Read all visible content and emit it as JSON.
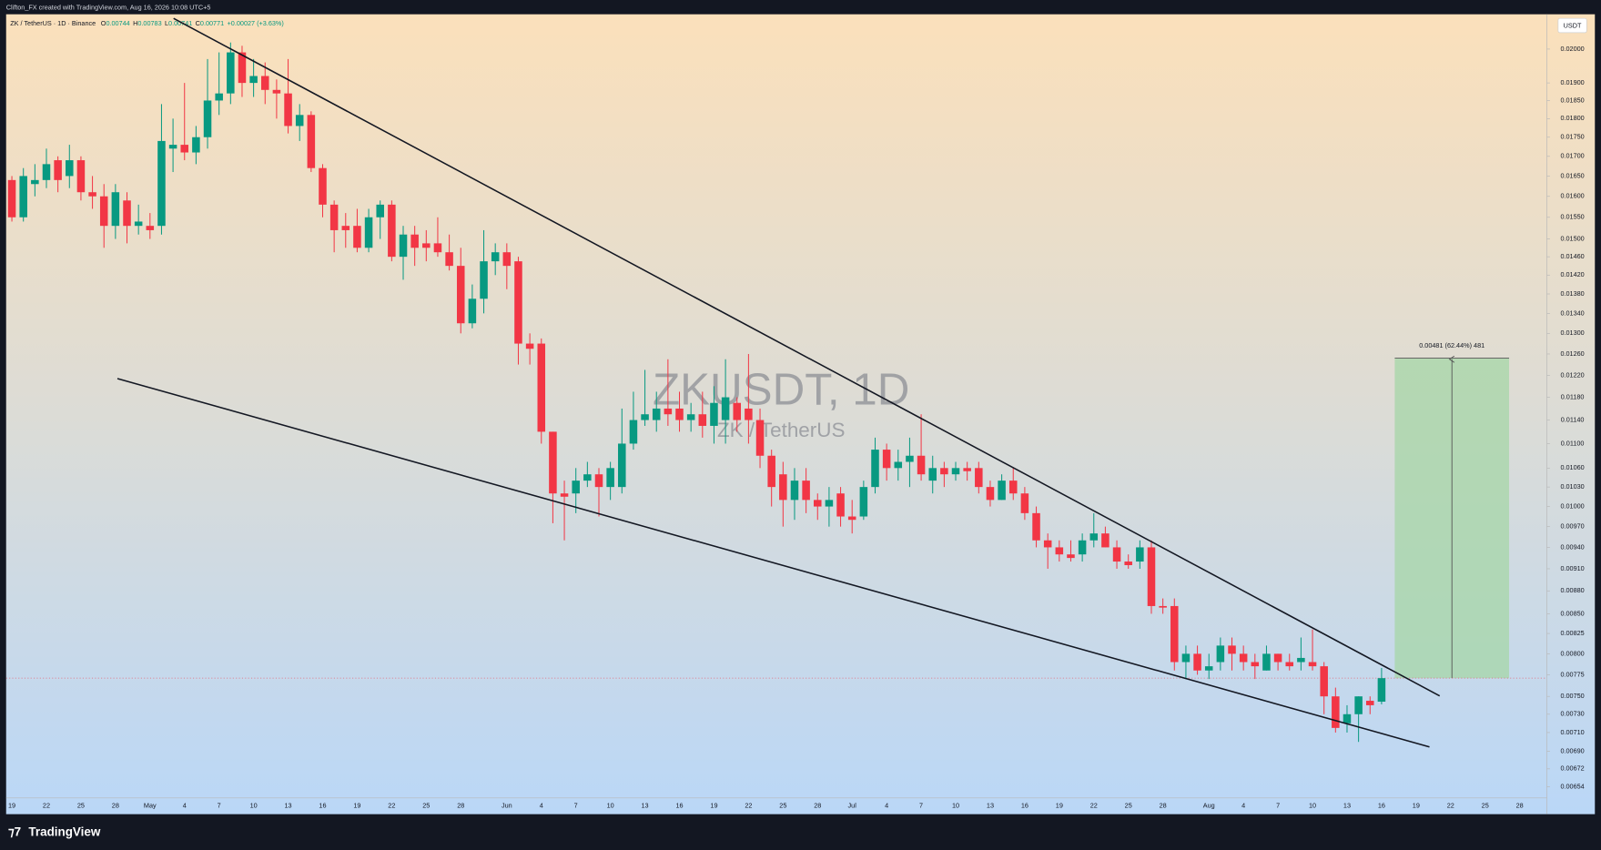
{
  "header": {
    "credit": "Clifton_FX created with TradingView.com, Aug 16, 2026 10:08 UTC+5"
  },
  "chart_data": {
    "type": "candlestick",
    "symbol": "ZK / TetherUS · 1D · Binance",
    "legend": {
      "open_label": "O",
      "open": 0.00744,
      "high_label": "H",
      "high": 0.00783,
      "low_label": "L",
      "low": 0.00741,
      "close_label": "C",
      "close": 0.00771,
      "change": "+0.00027 (+3.63%)"
    },
    "watermark_title": "ZKUSDT, 1D",
    "watermark_subtitle": "ZK / TetherUS",
    "currency": "USDT",
    "up_color": "#089981",
    "down_color": "#f23645",
    "log_scale": true,
    "grid": false,
    "ylim": [
      0.00643,
      0.02105
    ],
    "yticks": [
      {
        "value": 0.02,
        "label": "0.02000"
      },
      {
        "value": 0.019,
        "label": "0.01900"
      },
      {
        "value": 0.0185,
        "label": "0.01850"
      },
      {
        "value": 0.018,
        "label": "0.01800"
      },
      {
        "value": 0.0175,
        "label": "0.01750"
      },
      {
        "value": 0.017,
        "label": "0.01700"
      },
      {
        "value": 0.0165,
        "label": "0.01650"
      },
      {
        "value": 0.016,
        "label": "0.01600"
      },
      {
        "value": 0.0155,
        "label": "0.01550"
      },
      {
        "value": 0.015,
        "label": "0.01500"
      },
      {
        "value": 0.0146,
        "label": "0.01460"
      },
      {
        "value": 0.0142,
        "label": "0.01420"
      },
      {
        "value": 0.0138,
        "label": "0.01380"
      },
      {
        "value": 0.0134,
        "label": "0.01340"
      },
      {
        "value": 0.013,
        "label": "0.01300"
      },
      {
        "value": 0.0126,
        "label": "0.01260"
      },
      {
        "value": 0.0122,
        "label": "0.01220"
      },
      {
        "value": 0.0118,
        "label": "0.01180"
      },
      {
        "value": 0.0114,
        "label": "0.01140"
      },
      {
        "value": 0.011,
        "label": "0.01100"
      },
      {
        "value": 0.0106,
        "label": "0.01060"
      },
      {
        "value": 0.0103,
        "label": "0.01030"
      },
      {
        "value": 0.01,
        "label": "0.01000"
      },
      {
        "value": 0.0097,
        "label": "0.00970"
      },
      {
        "value": 0.0094,
        "label": "0.00940"
      },
      {
        "value": 0.0091,
        "label": "0.00910"
      },
      {
        "value": 0.0088,
        "label": "0.00880"
      },
      {
        "value": 0.0085,
        "label": "0.00850"
      },
      {
        "value": 0.00825,
        "label": "0.00825"
      },
      {
        "value": 0.008,
        "label": "0.00800"
      },
      {
        "value": 0.00775,
        "label": "0.00775"
      },
      {
        "value": 0.0075,
        "label": "0.00750"
      },
      {
        "value": 0.0073,
        "label": "0.00730"
      },
      {
        "value": 0.0071,
        "label": "0.00710"
      },
      {
        "value": 0.0069,
        "label": "0.00690"
      },
      {
        "value": 0.00672,
        "label": "0.00672"
      },
      {
        "value": 0.00654,
        "label": "0.00654"
      }
    ],
    "categories": [
      "19",
      null,
      null,
      "22",
      null,
      null,
      "25",
      null,
      null,
      "28",
      null,
      null,
      "May",
      null,
      null,
      "4",
      null,
      null,
      "7",
      null,
      null,
      "10",
      null,
      null,
      "13",
      null,
      null,
      "16",
      null,
      null,
      "19",
      null,
      null,
      "22",
      null,
      null,
      "25",
      null,
      null,
      "28",
      null,
      null,
      null,
      "Jun",
      null,
      null,
      "4",
      null,
      null,
      "7",
      null,
      null,
      "10",
      null,
      null,
      "13",
      null,
      null,
      "16",
      null,
      null,
      "19",
      null,
      null,
      "22",
      null,
      null,
      "25",
      null,
      null,
      "28",
      null,
      null,
      "Jul",
      null,
      null,
      "4",
      null,
      null,
      "7",
      null,
      null,
      "10",
      null,
      null,
      "13",
      null,
      null,
      "16",
      null,
      null,
      "19",
      null,
      null,
      "22",
      null,
      null,
      "25",
      null,
      null,
      "28",
      null,
      null,
      null,
      "Aug",
      null,
      null,
      "4",
      null,
      null,
      "7",
      null,
      null,
      "10",
      null,
      null,
      "13",
      null,
      null,
      "16",
      null,
      null,
      "19",
      null,
      null,
      "22",
      null,
      null,
      "25",
      null,
      null,
      "28"
    ],
    "open": [
      0.0164,
      0.0155,
      0.0163,
      0.0164,
      0.0169,
      0.0165,
      0.0169,
      0.0161,
      0.016,
      0.0153,
      0.0159,
      0.0153,
      0.0153,
      0.0153,
      0.0172,
      0.0173,
      0.0171,
      0.0175,
      0.0185,
      0.0187,
      0.0199,
      0.019,
      0.0192,
      0.0188,
      0.0187,
      0.0178,
      0.0181,
      0.0167,
      0.0158,
      0.0153,
      0.0153,
      0.0148,
      0.0155,
      0.0158,
      0.0146,
      0.0151,
      0.0149,
      0.0149,
      0.0147,
      0.0144,
      0.0132,
      0.0137,
      0.0145,
      0.0147,
      0.0145,
      0.0128,
      0.0128,
      0.0112,
      0.0102,
      0.0102,
      0.0104,
      0.0105,
      0.0103,
      0.0103,
      0.011,
      0.0114,
      0.0114,
      0.0116,
      0.0116,
      0.0114,
      0.0115,
      0.0113,
      0.0114,
      0.0117,
      0.0116,
      0.0114,
      0.0108,
      0.0105,
      0.0101,
      0.0104,
      0.0101,
      0.01,
      0.0102,
      0.00985,
      0.00985,
      0.0103,
      0.0109,
      0.0106,
      0.0107,
      0.0108,
      0.0104,
      0.0106,
      0.0105,
      0.0106,
      0.0106,
      0.0103,
      0.0101,
      0.0104,
      0.0102,
      0.0099,
      0.0095,
      0.0094,
      0.0093,
      0.0093,
      0.0095,
      0.0096,
      0.0094,
      0.0092,
      0.0092,
      0.0094,
      0.0086,
      0.0086,
      0.0079,
      0.008,
      0.0078,
      0.0079,
      0.0081,
      0.008,
      0.0079,
      0.0078,
      0.008,
      0.0079,
      0.0079,
      0.0079,
      0.00785,
      0.0075,
      0.0072,
      0.0073,
      0.00745,
      0.00744,
      null,
      null,
      null,
      null,
      null,
      null,
      null,
      null,
      null,
      null,
      null,
      null
    ],
    "high": [
      0.0165,
      0.0167,
      0.0168,
      0.0172,
      0.017,
      0.0173,
      0.017,
      0.0165,
      0.0163,
      0.0163,
      0.0161,
      0.0158,
      0.0156,
      0.0184,
      0.018,
      0.019,
      0.0178,
      0.0197,
      0.0199,
      0.0202,
      0.0201,
      0.0197,
      0.0196,
      0.0191,
      0.0197,
      0.0184,
      0.0182,
      0.0168,
      0.0159,
      0.0156,
      0.0157,
      0.0157,
      0.0159,
      0.0159,
      0.0153,
      0.0153,
      0.0152,
      0.0155,
      0.0151,
      0.0148,
      0.014,
      0.0152,
      0.0149,
      0.0149,
      0.0146,
      0.013,
      0.0129,
      0.0112,
      0.0104,
      0.0106,
      0.0107,
      0.0106,
      0.0107,
      0.0116,
      0.0119,
      0.0123,
      0.0119,
      0.0125,
      0.0119,
      0.0117,
      0.0119,
      0.012,
      0.0125,
      0.0118,
      0.0126,
      0.0116,
      0.0109,
      0.0107,
      0.0106,
      0.0106,
      0.0102,
      0.0103,
      0.0103,
      0.0101,
      0.0104,
      0.0111,
      0.011,
      0.0109,
      0.0111,
      0.0115,
      0.0108,
      0.0107,
      0.0107,
      0.0107,
      0.0107,
      0.0104,
      0.0105,
      0.0106,
      0.0103,
      0.01,
      0.0096,
      0.0095,
      0.0095,
      0.0096,
      0.0099,
      0.0097,
      0.0095,
      0.0093,
      0.0095,
      0.0095,
      0.0087,
      0.0087,
      0.0081,
      0.0081,
      0.008,
      0.0082,
      0.0082,
      0.0081,
      0.008,
      0.0081,
      0.008,
      0.008,
      0.0082,
      0.0083,
      0.0079,
      0.0076,
      0.0074,
      0.0075,
      0.0075,
      0.00783,
      null,
      null,
      null,
      null,
      null,
      null,
      null,
      null,
      null,
      null,
      null,
      null
    ],
    "low": [
      0.0154,
      0.0154,
      0.016,
      0.0162,
      0.0161,
      0.0162,
      0.0159,
      0.0157,
      0.0148,
      0.015,
      0.0149,
      0.0151,
      0.015,
      0.0151,
      0.0166,
      0.0169,
      0.0168,
      0.0172,
      0.0181,
      0.0184,
      0.0186,
      0.0186,
      0.0184,
      0.018,
      0.0176,
      0.0174,
      0.0166,
      0.0155,
      0.0147,
      0.0148,
      0.0147,
      0.0147,
      0.015,
      0.0145,
      0.0141,
      0.0144,
      0.0145,
      0.0146,
      0.0143,
      0.013,
      0.0131,
      0.0134,
      0.0142,
      0.0139,
      0.0124,
      0.0124,
      0.011,
      0.00975,
      0.0095,
      0.0099,
      0.0103,
      0.00985,
      0.0101,
      0.0102,
      0.0109,
      0.0113,
      0.0112,
      0.0113,
      0.0112,
      0.0112,
      0.0111,
      0.011,
      0.011,
      0.0112,
      0.011,
      0.0106,
      0.01,
      0.0097,
      0.0098,
      0.0099,
      0.0098,
      0.0097,
      0.0097,
      0.0096,
      0.0098,
      0.0102,
      0.0104,
      0.0104,
      0.0103,
      0.0104,
      0.0102,
      0.0103,
      0.0104,
      0.0104,
      0.0102,
      0.01,
      0.0101,
      0.0101,
      0.0098,
      0.0094,
      0.0091,
      0.0092,
      0.0092,
      0.0092,
      0.0094,
      0.0094,
      0.0091,
      0.0091,
      0.0091,
      0.0085,
      0.0085,
      0.0078,
      0.0077,
      0.00775,
      0.0077,
      0.0078,
      0.0078,
      0.0078,
      0.0077,
      0.0078,
      0.0078,
      0.0078,
      0.0078,
      0.0078,
      0.0073,
      0.0071,
      0.0071,
      0.007,
      0.0073,
      0.00741,
      null,
      null,
      null,
      null,
      null,
      null,
      null,
      null,
      null,
      null,
      null,
      null
    ],
    "close": [
      0.0155,
      0.0165,
      0.0164,
      0.0168,
      0.0164,
      0.0169,
      0.0161,
      0.016,
      0.0153,
      0.0161,
      0.0153,
      0.0154,
      0.0152,
      0.0174,
      0.0173,
      0.0171,
      0.0175,
      0.0185,
      0.0187,
      0.0199,
      0.019,
      0.0192,
      0.0188,
      0.0187,
      0.0178,
      0.0181,
      0.0167,
      0.0158,
      0.0152,
      0.0152,
      0.0148,
      0.0155,
      0.0158,
      0.0146,
      0.0151,
      0.0148,
      0.0148,
      0.0147,
      0.0144,
      0.0132,
      0.0137,
      0.0145,
      0.0147,
      0.0144,
      0.0128,
      0.0127,
      0.0112,
      0.0102,
      0.01015,
      0.0104,
      0.0105,
      0.0103,
      0.0106,
      0.011,
      0.0114,
      0.0115,
      0.0116,
      0.0115,
      0.0114,
      0.0115,
      0.0113,
      0.0117,
      0.0118,
      0.0114,
      0.0114,
      0.0108,
      0.0103,
      0.0101,
      0.0104,
      0.0101,
      0.01,
      0.0101,
      0.00985,
      0.0098,
      0.0103,
      0.0109,
      0.0106,
      0.0107,
      0.0108,
      0.0105,
      0.0106,
      0.0105,
      0.0106,
      0.01055,
      0.0103,
      0.0101,
      0.0104,
      0.0102,
      0.0099,
      0.0095,
      0.0094,
      0.0093,
      0.00925,
      0.0095,
      0.0096,
      0.0094,
      0.0092,
      0.00915,
      0.0094,
      0.0086,
      0.00858,
      0.0079,
      0.008,
      0.0078,
      0.00785,
      0.0081,
      0.008,
      0.0079,
      0.00785,
      0.008,
      0.0079,
      0.00785,
      0.00795,
      0.00785,
      0.0075,
      0.00715,
      0.0073,
      0.0075,
      0.0074,
      0.00771,
      null,
      null,
      null,
      null,
      null,
      null,
      null,
      null,
      null,
      null,
      null,
      null
    ],
    "measure": {
      "from": 0.00771,
      "to": 0.01252,
      "label": "0.00481 (62.44%) 481",
      "color": "#a5d6a7"
    }
  },
  "footer": {
    "brand": "TradingView"
  }
}
